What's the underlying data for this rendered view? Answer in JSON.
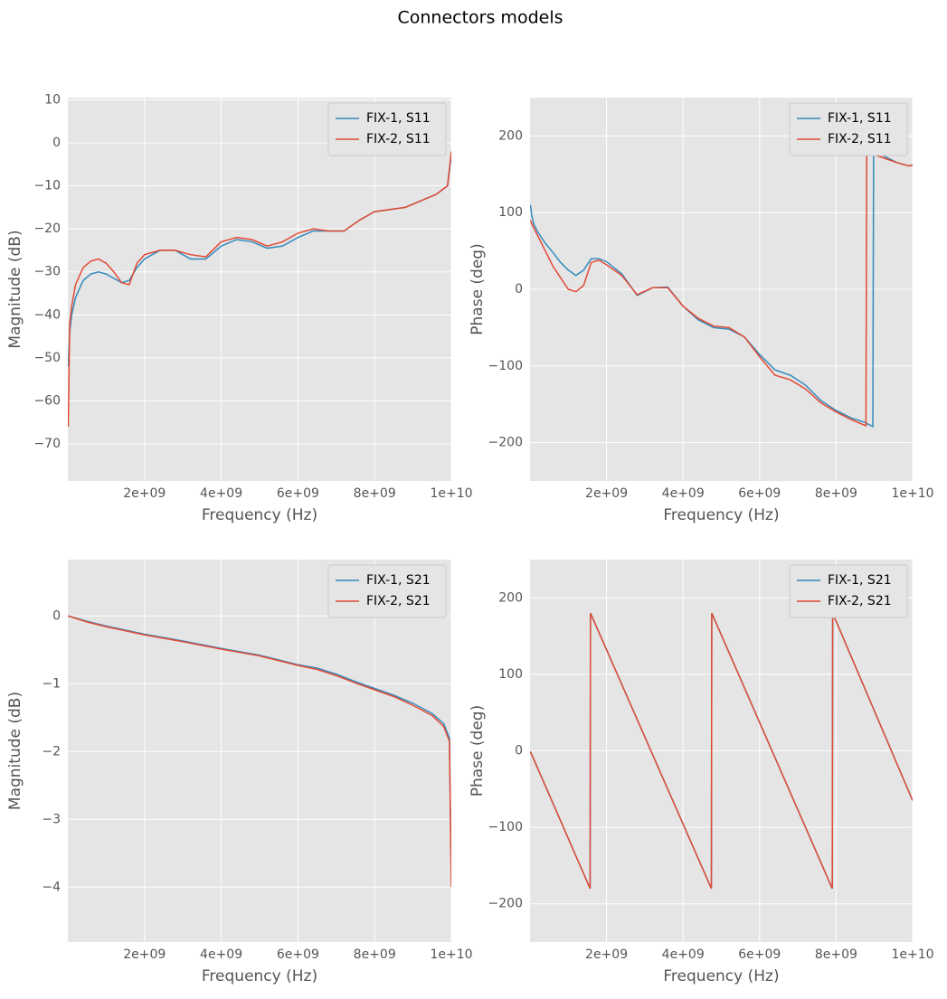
{
  "title": "Connectors models",
  "chart_data": [
    {
      "type": "line",
      "xlabel": "Frequency (Hz)",
      "ylabel": "Magnitude (dB)",
      "x": [
        10000000,
        50000000,
        100000000,
        200000000,
        400000000,
        600000000,
        800000000,
        1000000000,
        1200000000,
        1400000000,
        1600000000,
        1800000000,
        2000000000,
        2400000000,
        2800000000,
        3200000000,
        3600000000,
        4000000000,
        4400000000,
        4800000000,
        5200000000,
        5600000000,
        6000000000,
        6400000000,
        6800000000,
        7200000000,
        7600000000,
        8000000000,
        8400000000,
        8800000000,
        9200000000,
        9600000000,
        9900000000,
        10000000000
      ],
      "series": [
        {
          "name": "FIX-1, S11",
          "color": "#348abd",
          "values": [
            -52,
            -44,
            -40,
            -36,
            -32,
            -30.5,
            -30,
            -30.5,
            -31.5,
            -32.5,
            -32,
            -29,
            -27,
            -25,
            -25,
            -27,
            -27,
            -24,
            -22.5,
            -23,
            -24.5,
            -24,
            -22,
            -20.5,
            -20.5,
            -20.5,
            -18,
            -16,
            -15.5,
            -15,
            -13.5,
            -12,
            -10,
            -3
          ]
        },
        {
          "name": "FIX-2, S11",
          "color": "#e24a33",
          "values": [
            -66,
            -42,
            -38,
            -33,
            -29,
            -27.5,
            -27,
            -28,
            -30,
            -32.5,
            -33,
            -28,
            -26,
            -25,
            -25,
            -26,
            -26.5,
            -23,
            -22,
            -22.5,
            -24,
            -23,
            -21,
            -20,
            -20.5,
            -20.5,
            -18,
            -16,
            -15.5,
            -15,
            -13.5,
            -12,
            -10,
            -2
          ]
        }
      ],
      "xlim": [
        0,
        10000000000
      ],
      "xticks": [
        {
          "value": 2000000000,
          "label": "2e+09"
        },
        {
          "value": 4000000000,
          "label": "4e+09"
        },
        {
          "value": 6000000000,
          "label": "6e+09"
        },
        {
          "value": 8000000000,
          "label": "8e+09"
        },
        {
          "value": 10000000000,
          "label": "1e+10"
        }
      ],
      "ylim": [
        -78.6,
        10.5
      ],
      "yticks": [
        {
          "value": -70,
          "label": "−70"
        },
        {
          "value": -60,
          "label": "−60"
        },
        {
          "value": -50,
          "label": "−50"
        },
        {
          "value": -40,
          "label": "−40"
        },
        {
          "value": -30,
          "label": "−30"
        },
        {
          "value": -20,
          "label": "−20"
        },
        {
          "value": -10,
          "label": "−10"
        },
        0,
        10
      ],
      "grid": true,
      "legend": "upper right"
    },
    {
      "type": "line",
      "xlabel": "Frequency (Hz)",
      "ylabel": "Phase (deg)",
      "x": [
        10000000,
        50000000,
        100000000,
        200000000,
        400000000,
        600000000,
        800000000,
        1000000000,
        1200000000,
        1400000000,
        1600000000,
        1800000000,
        2000000000,
        2400000000,
        2800000000,
        3200000000,
        3600000000,
        4000000000,
        4400000000,
        4800000000,
        5200000000,
        5600000000,
        6000000000,
        6400000000,
        6800000000,
        7200000000,
        7600000000,
        8000000000,
        8400000000,
        8780000000,
        8800000000,
        8960000000,
        8980000000,
        9200000000,
        9600000000,
        9900000000,
        10000000000
      ],
      "series": [
        {
          "name": "FIX-1, S11",
          "color": "#348abd",
          "values": [
            110,
            95,
            85,
            75,
            60,
            48,
            35,
            25,
            18,
            25,
            40,
            40,
            36,
            20,
            -8,
            2,
            3,
            -22,
            -40,
            -50,
            -52,
            -62,
            -85,
            -105,
            -112,
            -125,
            -145,
            -158,
            -168,
            -174,
            -175,
            -179,
            180,
            175,
            165,
            161,
            162
          ]
        },
        {
          "name": "FIX-2, S11",
          "color": "#e24a33",
          "values": [
            90,
            85,
            80,
            70,
            50,
            30,
            15,
            0,
            -3,
            5,
            35,
            38,
            32,
            18,
            -7,
            2,
            2,
            -22,
            -38,
            -48,
            -50,
            -62,
            -88,
            -112,
            -118,
            -130,
            -148,
            -160,
            -170,
            -178,
            180,
            178,
            176,
            172,
            165,
            161,
            162
          ]
        }
      ],
      "xlim": [
        0,
        10000000000
      ],
      "xticks": [
        {
          "value": 2000000000,
          "label": "2e+09"
        },
        {
          "value": 4000000000,
          "label": "4e+09"
        },
        {
          "value": 6000000000,
          "label": "6e+09"
        },
        {
          "value": 8000000000,
          "label": "8e+09"
        },
        {
          "value": 10000000000,
          "label": "1e+10"
        }
      ],
      "ylim": [
        -250,
        250
      ],
      "yticks": [
        {
          "value": -200,
          "label": "−200"
        },
        {
          "value": -100,
          "label": "−100"
        },
        0,
        100,
        200
      ],
      "grid": true,
      "legend": "upper right"
    },
    {
      "type": "line",
      "xlabel": "Frequency (Hz)",
      "ylabel": "Magnitude (dB)",
      "x": [
        10000000,
        500000000,
        1000000000,
        2000000000,
        3000000000,
        4000000000,
        5000000000,
        6000000000,
        6500000000,
        7000000000,
        7500000000,
        8000000000,
        8500000000,
        9000000000,
        9500000000,
        9800000000,
        9950000000,
        10000000000
      ],
      "series": [
        {
          "name": "FIX-1, S21",
          "color": "#348abd",
          "values": [
            0,
            -0.08,
            -0.15,
            -0.27,
            -0.37,
            -0.48,
            -0.58,
            -0.72,
            -0.77,
            -0.86,
            -0.97,
            -1.07,
            -1.17,
            -1.29,
            -1.44,
            -1.59,
            -1.8,
            -3.9
          ]
        },
        {
          "name": "FIX-2, S21",
          "color": "#e24a33",
          "values": [
            0,
            -0.09,
            -0.16,
            -0.28,
            -0.38,
            -0.49,
            -0.59,
            -0.73,
            -0.79,
            -0.88,
            -0.99,
            -1.09,
            -1.19,
            -1.32,
            -1.47,
            -1.63,
            -1.85,
            -4.0
          ]
        }
      ],
      "xlim": [
        0,
        10000000000
      ],
      "xticks": [
        {
          "value": 2000000000,
          "label": "2e+09"
        },
        {
          "value": 4000000000,
          "label": "4e+09"
        },
        {
          "value": 6000000000,
          "label": "6e+09"
        },
        {
          "value": 8000000000,
          "label": "8e+09"
        },
        {
          "value": 10000000000,
          "label": "1e+10"
        }
      ],
      "ylim": [
        -4.81,
        0.83
      ],
      "yticks": [
        {
          "value": -4,
          "label": "−4"
        },
        {
          "value": -3,
          "label": "−3"
        },
        {
          "value": -2,
          "label": "−2"
        },
        {
          "value": -1,
          "label": "−1"
        },
        0
      ],
      "grid": true,
      "legend": "upper right"
    },
    {
      "type": "line",
      "xlabel": "Frequency (Hz)",
      "ylabel": "Phase (deg)",
      "x": [
        10000000,
        1570000000,
        1580000000,
        4740000000,
        4750000000,
        7900000000,
        7910000000,
        10000000000
      ],
      "series": [
        {
          "name": "FIX-1, S21",
          "color": "#348abd",
          "values": [
            -1,
            -180,
            180,
            -180,
            180,
            -180,
            180,
            -65
          ]
        },
        {
          "name": "FIX-2, S21",
          "color": "#e24a33",
          "values": [
            -1,
            -180,
            180,
            -180,
            180,
            -180,
            180,
            -65
          ]
        }
      ],
      "xlim": [
        0,
        10000000000
      ],
      "xticks": [
        {
          "value": 2000000000,
          "label": "2e+09"
        },
        {
          "value": 4000000000,
          "label": "4e+09"
        },
        {
          "value": 6000000000,
          "label": "6e+09"
        },
        {
          "value": 8000000000,
          "label": "8e+09"
        },
        {
          "value": 10000000000,
          "label": "1e+10"
        }
      ],
      "ylim": [
        -250,
        250
      ],
      "yticks": [
        {
          "value": -200,
          "label": "−200"
        },
        {
          "value": -100,
          "label": "−100"
        },
        0,
        100,
        200
      ],
      "grid": true,
      "legend": "upper right"
    }
  ]
}
